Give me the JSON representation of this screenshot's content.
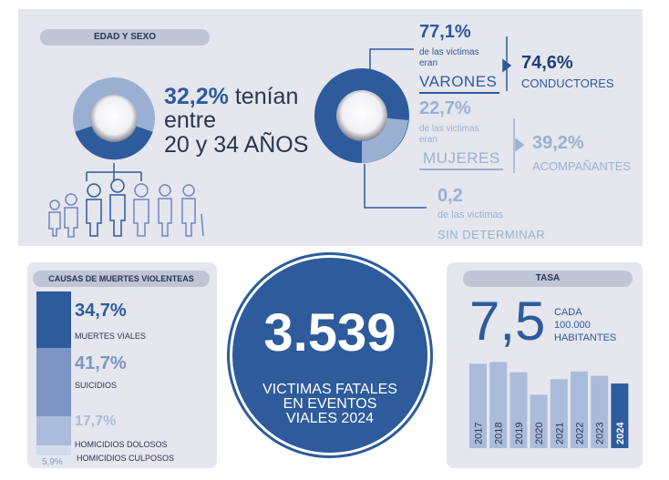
{
  "age_sex": {
    "header": "EDAD Y SEXO",
    "age_pct": "32,2%",
    "age_text_1": "tenían",
    "age_text_2": "entre",
    "age_text_3": "20 y 34 AÑOS"
  },
  "sex": {
    "male_pct": "77,1%",
    "male_sub_1": "de las victimas",
    "male_sub_2": "eran",
    "male_label": "VARONES",
    "drivers_pct": "74,6%",
    "drivers_label": "CONDUCTORES",
    "female_pct": "22,7%",
    "female_sub_1": "de las victimas",
    "female_sub_2": "eran",
    "female_label": "MUJERES",
    "companions_pct": "39,2%",
    "companions_label": "ACOMPAÑANTES",
    "undet_pct": "0,2",
    "undet_sub": "de las victimas",
    "undet_label": "SIN DETERMINAR"
  },
  "causes": {
    "header": "CAUSAS DE MUERTES VIOLENTEAS",
    "items": [
      {
        "pct": "34,7%",
        "label": "MUERTES VIALES",
        "value": 34.7
      },
      {
        "pct": "41,7%",
        "label": "SUICIDIOS",
        "value": 41.7
      },
      {
        "pct": "17,7%",
        "label": "HOMICIDIOS DOLOSOS",
        "value": 17.7
      },
      {
        "pct": "5,9%",
        "label": "HOMICIDIOS CULPOSOS",
        "value": 5.9
      }
    ]
  },
  "center": {
    "number": "3.539",
    "line1": "VICTIMAS FATALES",
    "line2": "EN EVENTOS",
    "line3": "VIALES 2024"
  },
  "rate": {
    "header": "TASA",
    "value": "7,5",
    "line1": "CADA",
    "line2": "100.000",
    "line3": "HABITANTES"
  },
  "chart_data": {
    "type": "bar",
    "title": "TASA",
    "categories": [
      "2017",
      "2018",
      "2019",
      "2020",
      "2021",
      "2022",
      "2023",
      "2024"
    ],
    "values": [
      9.8,
      10.0,
      8.8,
      6.2,
      8.0,
      8.9,
      8.4,
      7.5
    ],
    "ylim": [
      0,
      11
    ]
  },
  "colors": {
    "dark_blue": "#2d5b9c",
    "light_blue": "#9ab0d2",
    "panel": "#e5e6ee"
  }
}
